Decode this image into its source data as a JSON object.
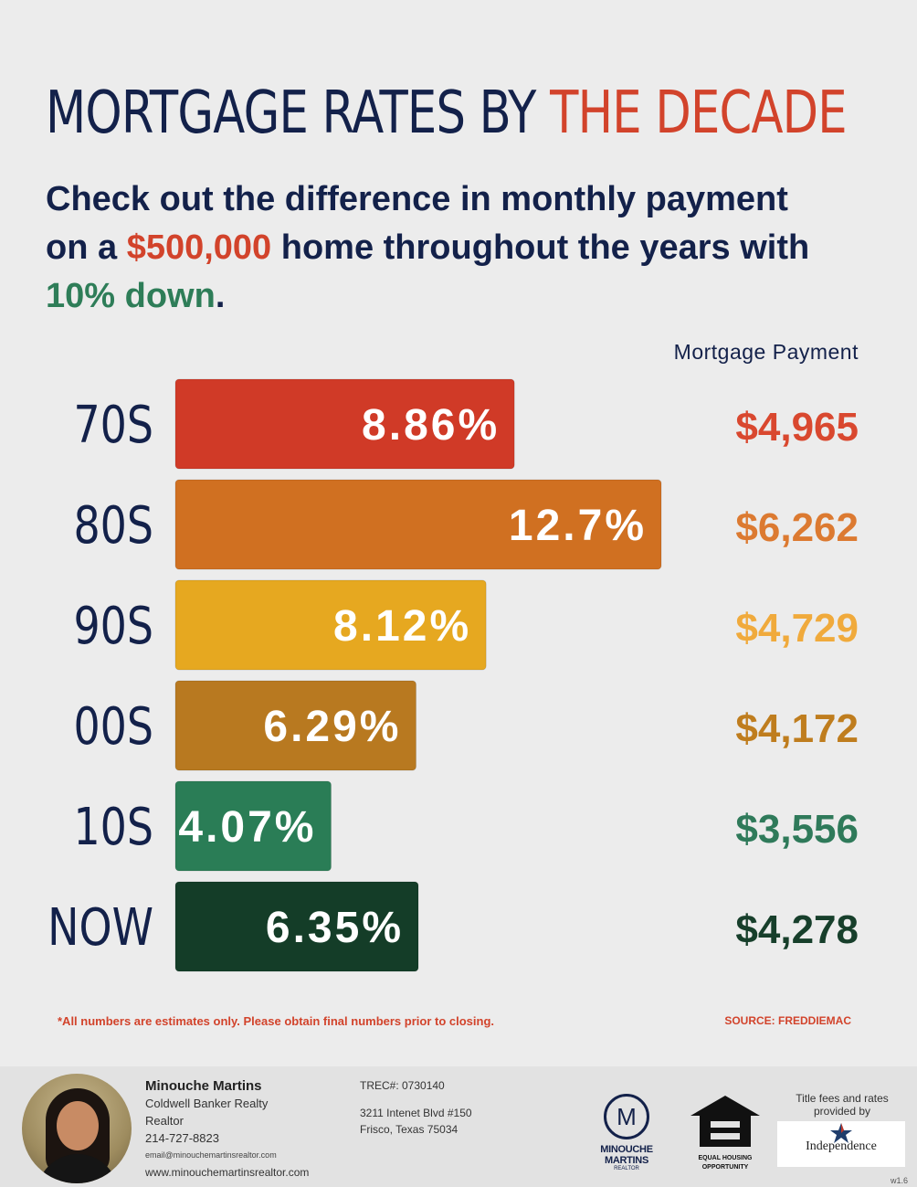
{
  "title": {
    "part1": "MORTGAGE RATES BY ",
    "highlight": "THE DECADE"
  },
  "subtitle": {
    "line1": "Check out the difference in monthly payment",
    "pre": "on a ",
    "amount": "$500,000",
    "post": " home throughout the years with",
    "down": "10% down",
    "end": "."
  },
  "payment_header": "Mortgage Payment",
  "chart_data": {
    "type": "bar",
    "orientation": "horizontal",
    "categories": [
      "70S",
      "80S",
      "90S",
      "00S",
      "10S",
      "NOW"
    ],
    "values": [
      8.86,
      12.7,
      8.12,
      6.29,
      4.07,
      6.35
    ],
    "value_labels": [
      "8.86%",
      "12.7%",
      "8.12%",
      "6.29%",
      "4.07%",
      "6.35%"
    ],
    "payments": [
      "$4,965",
      "$6,262",
      "$4,729",
      "$4,172",
      "$3,556",
      "$4,278"
    ],
    "colors": [
      "#d03a27",
      "#d07021",
      "#e6a820",
      "#b87920",
      "#2a7d56",
      "#143d28"
    ],
    "payment_colors": [
      "#d9482f",
      "#dc7a31",
      "#f0aa3c",
      "#bf7d1e",
      "#2f7a5a",
      "#173f2b"
    ],
    "unit": "%",
    "xlim": [
      0,
      13.5
    ],
    "grid": false
  },
  "footnote": "*All numbers are estimates only. Please obtain final numbers prior to closing.",
  "source": "SOURCE: FREDDIEMAC",
  "footer": {
    "agent_name": "Minouche Martins",
    "company": "Coldwell Banker Realty",
    "role": "Realtor",
    "phone": "214-727-8823",
    "email": "email@minouchemartinsrealtor.com",
    "website": "www.minouchemartinsrealtor.com",
    "trec": "TREC#: 0730140",
    "address1": "3211 Intenet Blvd #150",
    "address2": "Frisco, Texas 75034",
    "logo_name": "MINOUCHE MARTINS",
    "logo_sub": "REALTOR",
    "logo_letter": "M",
    "eho_line1": "EQUAL HOUSING",
    "eho_line2": "OPPORTUNITY",
    "title_fees": "Title fees and rates provided by",
    "title_company": "Independence",
    "version": "w1.6"
  }
}
